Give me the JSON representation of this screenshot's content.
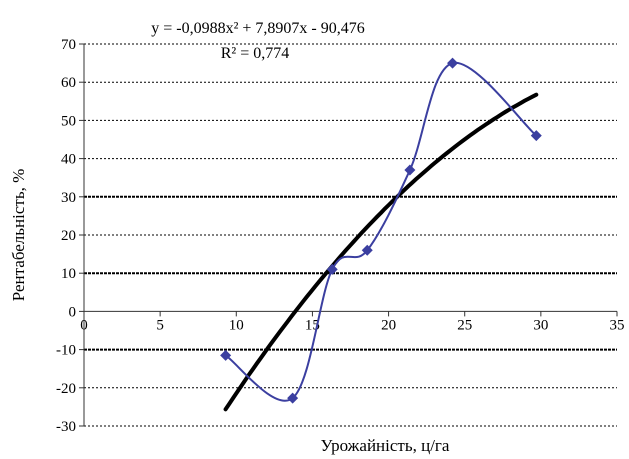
{
  "chart_data": {
    "type": "scatter",
    "xlabel": "Урожайність, ц/га",
    "ylabel": "Рентабельність, %",
    "xlim": [
      0,
      35
    ],
    "ylim": [
      -30,
      70
    ],
    "x_ticks": [
      "0",
      "5",
      "10",
      "15",
      "20",
      "25",
      "30",
      "35"
    ],
    "y_ticks": [
      "70",
      "60",
      "50",
      "40",
      "30",
      "20",
      "10",
      "0",
      "-10",
      "-20",
      "-30"
    ],
    "grid": "horizontal dashed",
    "series": [
      {
        "kind": "observed",
        "color": "#3b3fa0",
        "marker": "diamond",
        "smooth": true,
        "points": [
          {
            "x": 9.3,
            "y": -11.5
          },
          {
            "x": 13.7,
            "y": -22.7
          },
          {
            "x": 16.3,
            "y": 11
          },
          {
            "x": 18.6,
            "y": 16
          },
          {
            "x": 21.4,
            "y": 37
          },
          {
            "x": 24.2,
            "y": 65
          },
          {
            "x": 29.7,
            "y": 46
          }
        ]
      },
      {
        "kind": "trendline",
        "color": "#000000",
        "fit": "polynomial-2",
        "coefficients": {
          "a": -0.0988,
          "b": 7.8907,
          "c": -90.476
        },
        "x_range": [
          9.3,
          29.7
        ]
      }
    ],
    "annotations": {
      "equation": "y = -0,0988x² + 7,8907x - 90,476",
      "r_squared": "R² = 0,774"
    }
  }
}
